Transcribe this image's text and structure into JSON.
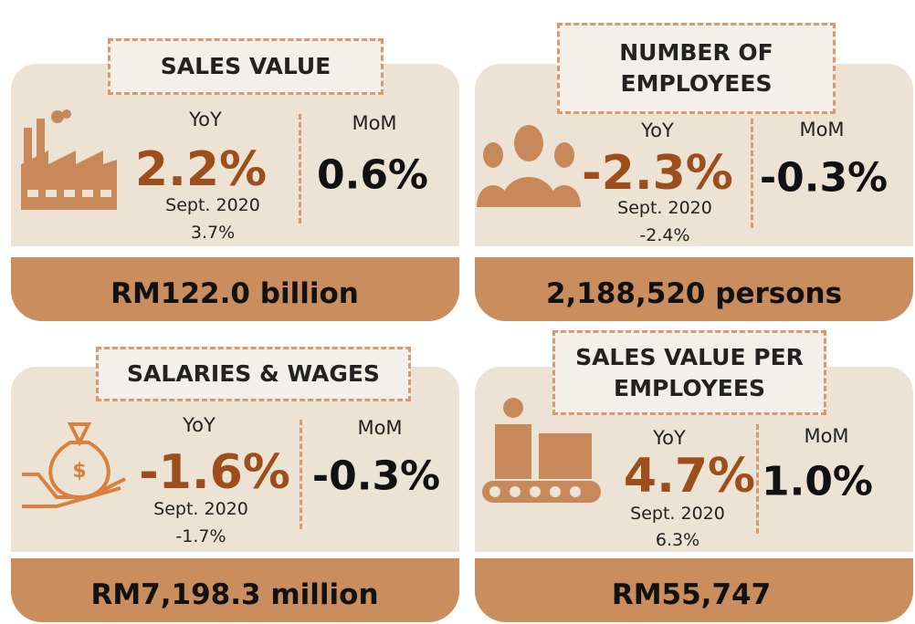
{
  "cards": [
    {
      "title": "SALES VALUE",
      "yoy_label": "YoY",
      "yoy": "2.2%",
      "prev_label": "Sept. 2020",
      "prev": "3.7%",
      "mom_label": "MoM",
      "mom": "0.6%",
      "total": "RM122.0 billion"
    },
    {
      "title": "NUMBER OF EMPLOYEES",
      "yoy_label": "YoY",
      "yoy": "-2.3%",
      "prev_label": "Sept. 2020",
      "prev": "-2.4%",
      "mom_label": "MoM",
      "mom": "-0.3%",
      "total": "2,188,520 persons"
    },
    {
      "title": "SALARIES & WAGES",
      "yoy_label": "YoY",
      "yoy": "-1.6%",
      "prev_label": "Sept. 2020",
      "prev": "-1.7%",
      "mom_label": "MoM",
      "mom": "-0.3%",
      "total": "RM7,198.3 million"
    },
    {
      "title": "SALES VALUE PER EMPLOYEES",
      "yoy_label": "YoY",
      "yoy": "4.7%",
      "prev_label": "Sept. 2020",
      "prev": "6.3%",
      "mom_label": "MoM",
      "mom": "1.0%",
      "total": "RM55,747"
    }
  ]
}
